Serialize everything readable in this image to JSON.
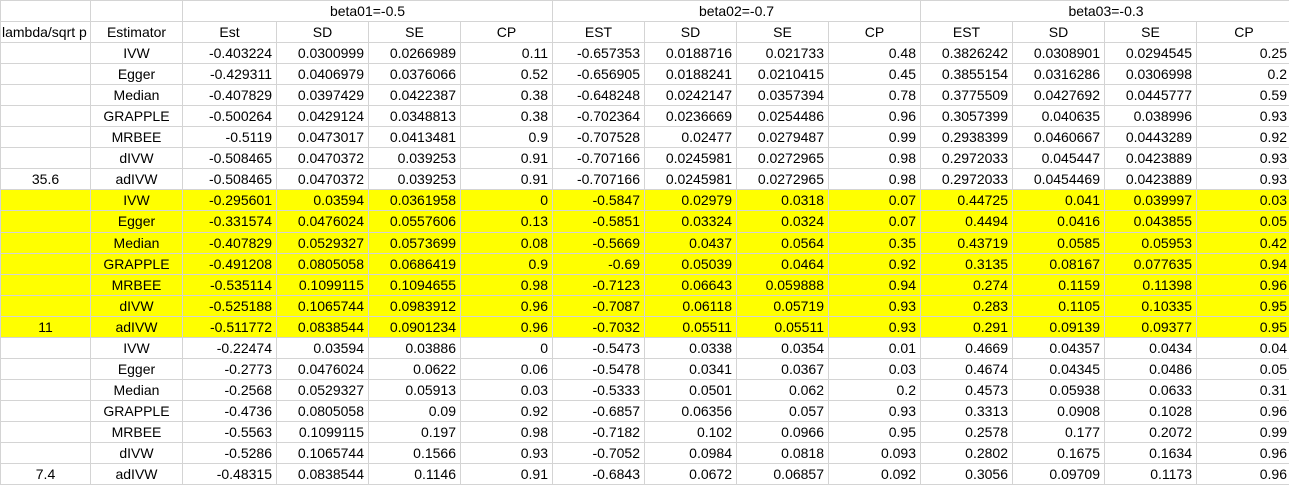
{
  "header": {
    "groups": [
      "beta01=-0.5",
      "beta02=-0.7",
      "beta03=-0.3"
    ],
    "columns": [
      "lambda/sqrt p",
      "Estimator",
      "Est",
      "SD",
      "SE",
      "CP",
      "EST",
      "SD",
      "SE",
      "CP",
      "EST",
      "SD",
      "SE",
      "CP"
    ]
  },
  "colors": {
    "highlight": "#ffff00",
    "grid": "#d4d4d4"
  },
  "blocks": [
    {
      "lambda": "35.6",
      "highlight": false,
      "rows": [
        {
          "est": "IVW",
          "vals": [
            "-0.403224",
            "0.0300999",
            "0.0266989",
            "0.11",
            "-0.657353",
            "0.0188716",
            "0.021733",
            "0.48",
            "0.3826242",
            "0.0308901",
            "0.0294545",
            "0.25"
          ]
        },
        {
          "est": "Egger",
          "vals": [
            "-0.429311",
            "0.0406979",
            "0.0376066",
            "0.52",
            "-0.656905",
            "0.0188241",
            "0.0210415",
            "0.45",
            "0.3855154",
            "0.0316286",
            "0.0306998",
            "0.2"
          ]
        },
        {
          "est": "Median",
          "vals": [
            "-0.407829",
            "0.0397429",
            "0.0422387",
            "0.38",
            "-0.648248",
            "0.0242147",
            "0.0357394",
            "0.78",
            "0.3775509",
            "0.0427692",
            "0.0445777",
            "0.59"
          ]
        },
        {
          "est": "GRAPPLE",
          "vals": [
            "-0.500264",
            "0.0429124",
            "0.0348813",
            "0.38",
            "-0.702364",
            "0.0236669",
            "0.0254486",
            "0.96",
            "0.3057399",
            "0.040635",
            "0.038996",
            "0.93"
          ]
        },
        {
          "est": "MRBEE",
          "vals": [
            "-0.5119",
            "0.0473017",
            "0.0413481",
            "0.9",
            "-0.707528",
            "0.02477",
            "0.0279487",
            "0.99",
            "0.2938399",
            "0.0460667",
            "0.0443289",
            "0.92"
          ]
        },
        {
          "est": "dIVW",
          "vals": [
            "-0.508465",
            "0.0470372",
            "0.039253",
            "0.91",
            "-0.707166",
            "0.0245981",
            "0.0272965",
            "0.98",
            "0.2972033",
            "0.045447",
            "0.0423889",
            "0.93"
          ]
        },
        {
          "est": "adIVW",
          "vals": [
            "-0.508465",
            "0.0470372",
            "0.039253",
            "0.91",
            "-0.707166",
            "0.0245981",
            "0.0272965",
            "0.98",
            "0.2972033",
            "0.0454469",
            "0.0423889",
            "0.93"
          ]
        }
      ]
    },
    {
      "lambda": "11",
      "highlight": true,
      "rows": [
        {
          "est": "IVW",
          "vals": [
            "-0.295601",
            "0.03594",
            "0.0361958",
            "0",
            "-0.5847",
            "0.02979",
            "0.0318",
            "0.07",
            "0.44725",
            "0.041",
            "0.039997",
            "0.03"
          ]
        },
        {
          "est": "Egger",
          "vals": [
            "-0.331574",
            "0.0476024",
            "0.0557606",
            "0.13",
            "-0.5851",
            "0.03324",
            "0.0324",
            "0.07",
            "0.4494",
            "0.0416",
            "0.043855",
            "0.05"
          ]
        },
        {
          "est": "Median",
          "vals": [
            "-0.407829",
            "0.0529327",
            "0.0573699",
            "0.08",
            "-0.5669",
            "0.0437",
            "0.0564",
            "0.35",
            "0.43719",
            "0.0585",
            "0.05953",
            "0.42"
          ]
        },
        {
          "est": "GRAPPLE",
          "vals": [
            "-0.491208",
            "0.0805058",
            "0.0686419",
            "0.9",
            "-0.69",
            "0.05039",
            "0.0464",
            "0.92",
            "0.3135",
            "0.08167",
            "0.077635",
            "0.94"
          ]
        },
        {
          "est": "MRBEE",
          "vals": [
            "-0.535114",
            "0.1099115",
            "0.1094655",
            "0.98",
            "-0.7123",
            "0.06643",
            "0.059888",
            "0.94",
            "0.274",
            "0.1159",
            "0.11398",
            "0.96"
          ]
        },
        {
          "est": "dIVW",
          "vals": [
            "-0.525188",
            "0.1065744",
            "0.0983912",
            "0.96",
            "-0.7087",
            "0.06118",
            "0.05719",
            "0.93",
            "0.283",
            "0.1105",
            "0.10335",
            "0.95"
          ]
        },
        {
          "est": "adIVW",
          "vals": [
            "-0.511772",
            "0.0838544",
            "0.0901234",
            "0.96",
            "-0.7032",
            "0.05511",
            "0.05511",
            "0.93",
            "0.291",
            "0.09139",
            "0.09377",
            "0.95"
          ]
        }
      ]
    },
    {
      "lambda": "7.4",
      "highlight": false,
      "rows": [
        {
          "est": "IVW",
          "vals": [
            "-0.22474",
            "0.03594",
            "0.03886",
            "0",
            "-0.5473",
            "0.0338",
            "0.0354",
            "0.01",
            "0.4669",
            "0.04357",
            "0.0434",
            "0.04"
          ]
        },
        {
          "est": "Egger",
          "vals": [
            "-0.2773",
            "0.0476024",
            "0.0622",
            "0.06",
            "-0.5478",
            "0.0341",
            "0.0367",
            "0.03",
            "0.4674",
            "0.04345",
            "0.0486",
            "0.05"
          ]
        },
        {
          "est": "Median",
          "vals": [
            "-0.2568",
            "0.0529327",
            "0.05913",
            "0.03",
            "-0.5333",
            "0.0501",
            "0.062",
            "0.2",
            "0.4573",
            "0.05938",
            "0.0633",
            "0.31"
          ]
        },
        {
          "est": "GRAPPLE",
          "vals": [
            "-0.4736",
            "0.0805058",
            "0.09",
            "0.92",
            "-0.6857",
            "0.06356",
            "0.057",
            "0.93",
            "0.3313",
            "0.0908",
            "0.1028",
            "0.96"
          ]
        },
        {
          "est": "MRBEE",
          "vals": [
            "-0.5563",
            "0.1099115",
            "0.197",
            "0.98",
            "-0.7182",
            "0.102",
            "0.0966",
            "0.95",
            "0.2578",
            "0.177",
            "0.2072",
            "0.99"
          ]
        },
        {
          "est": "dIVW",
          "vals": [
            "-0.5286",
            "0.1065744",
            "0.1566",
            "0.93",
            "-0.7052",
            "0.0984",
            "0.0818",
            "0.093",
            "0.2802",
            "0.1675",
            "0.1634",
            "0.96"
          ]
        },
        {
          "est": "adIVW",
          "vals": [
            "-0.48315",
            "0.0838544",
            "0.1146",
            "0.91",
            "-0.6843",
            "0.0672",
            "0.06857",
            "0.092",
            "0.3056",
            "0.09709",
            "0.1173",
            "0.96"
          ]
        }
      ]
    }
  ]
}
